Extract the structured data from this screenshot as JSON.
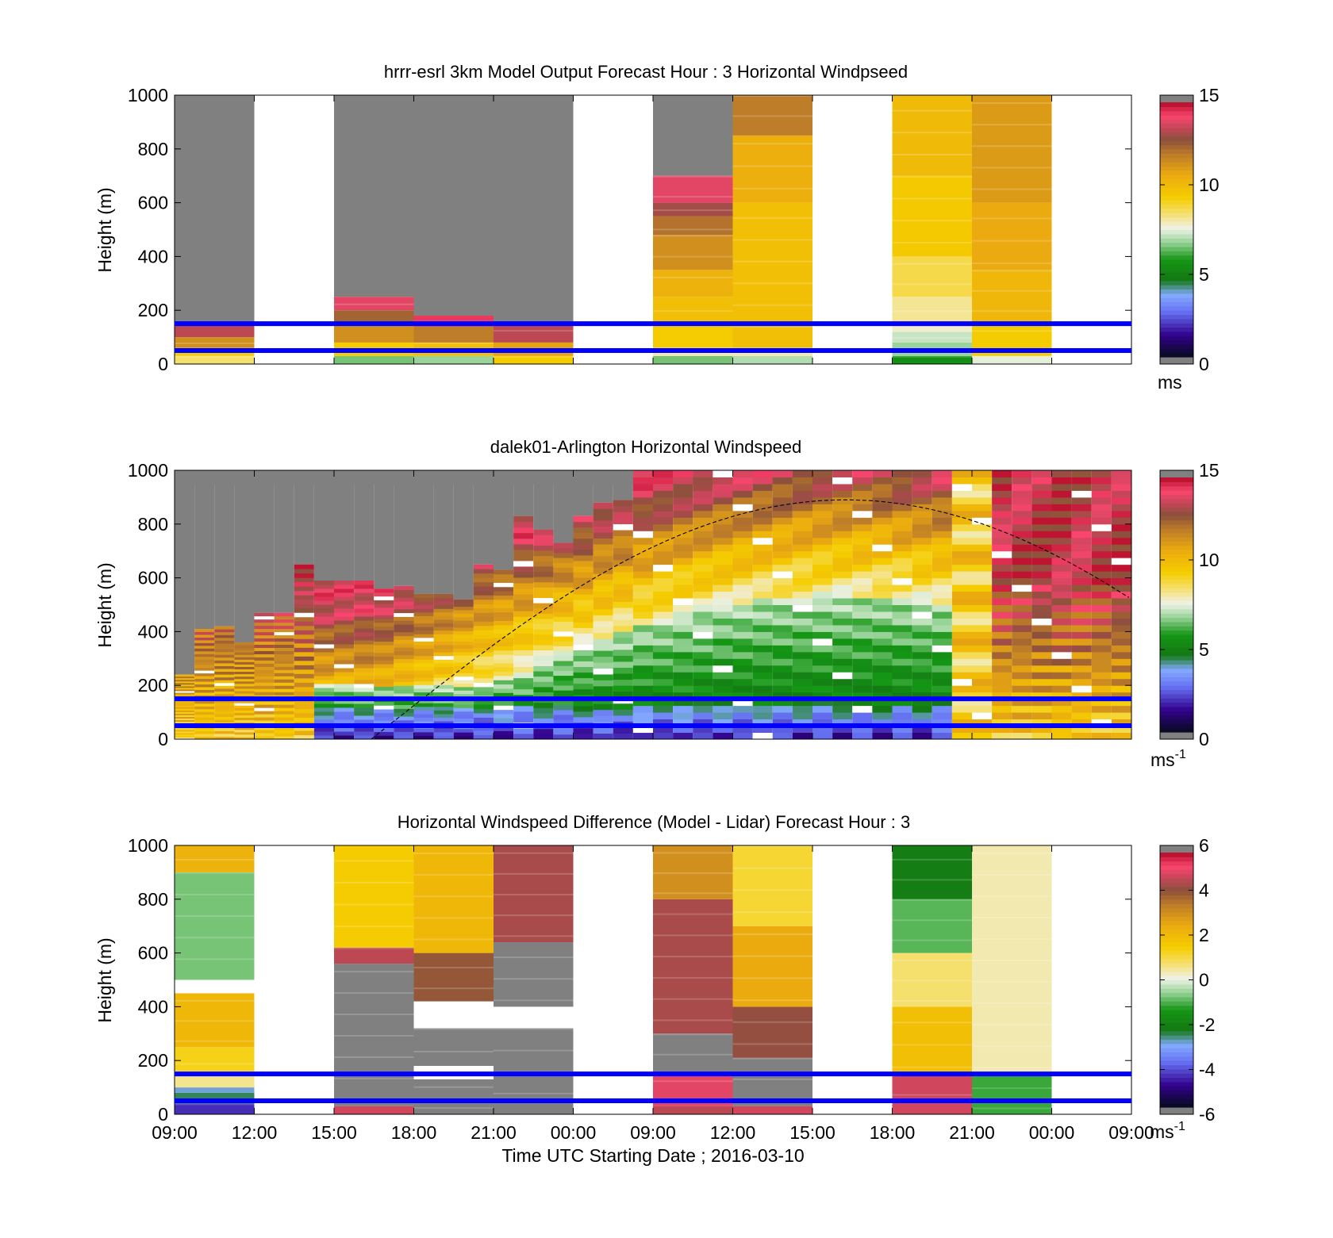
{
  "chart_data": [
    {
      "type": "heatmap",
      "title": "hrrr-esrl 3km Model Output   Forecast Hour : 3 Horizontal Windpseed",
      "ylabel": "Height (m)",
      "yticks": [
        "0",
        "200",
        "400",
        "600",
        "800",
        "1000"
      ],
      "ylim": [
        0,
        1000
      ],
      "xlim_hours": [
        0,
        72
      ],
      "colorbar": {
        "ticks": [
          "0",
          "5",
          "10",
          "15"
        ],
        "unit": "ms",
        "range": [
          0,
          15
        ]
      },
      "reference_lines_m": [
        50,
        150
      ],
      "columns": [
        {
          "start_hour": 0,
          "top_m": 150,
          "segments": [
            [
              0,
              30,
              8.5
            ],
            [
              30,
              60,
              9.5
            ],
            [
              60,
              100,
              11.5
            ],
            [
              100,
              150,
              13.5
            ]
          ]
        },
        {
          "start_hour": 12,
          "top_m": 250,
          "segments": [
            [
              0,
              30,
              6.5
            ],
            [
              30,
              80,
              9.5
            ],
            [
              80,
              150,
              11.5
            ],
            [
              150,
              200,
              12.5
            ],
            [
              200,
              250,
              14
            ]
          ]
        },
        {
          "start_hour": 18,
          "top_m": 180,
          "segments": [
            [
              0,
              30,
              6.8
            ],
            [
              30,
              80,
              10
            ],
            [
              80,
              140,
              12
            ],
            [
              140,
              180,
              14.5
            ]
          ]
        },
        {
          "start_hour": 24,
          "top_m": 150,
          "segments": [
            [
              0,
              30,
              9.5
            ],
            [
              30,
              80,
              11
            ],
            [
              80,
              150,
              13.5
            ]
          ]
        },
        {
          "start_hour": 36,
          "top_m": 700,
          "segments": [
            [
              0,
              30,
              6.5
            ],
            [
              30,
              60,
              8
            ],
            [
              60,
              150,
              9.5
            ],
            [
              150,
              250,
              10
            ],
            [
              250,
              350,
              10.5
            ],
            [
              350,
              480,
              11.5
            ],
            [
              480,
              550,
              12.2
            ],
            [
              550,
              600,
              13.2
            ],
            [
              600,
              700,
              14
            ]
          ]
        },
        {
          "start_hour": 42,
          "top_m": 1000,
          "segments": [
            [
              0,
              30,
              7
            ],
            [
              30,
              60,
              8
            ],
            [
              60,
              600,
              10
            ],
            [
              600,
              850,
              10.6
            ],
            [
              850,
              1000,
              12
            ]
          ]
        },
        {
          "start_hour": 54,
          "top_m": 1000,
          "segments": [
            [
              0,
              30,
              5.5
            ],
            [
              30,
              80,
              6.8
            ],
            [
              80,
              120,
              7.2
            ],
            [
              120,
              150,
              7.8
            ],
            [
              150,
              250,
              8.2
            ],
            [
              250,
              400,
              8.8
            ],
            [
              400,
              700,
              9.6
            ],
            [
              700,
              1000,
              10.2
            ]
          ]
        },
        {
          "start_hour": 60,
          "top_m": 1000,
          "segments": [
            [
              0,
              30,
              7.5
            ],
            [
              30,
              150,
              9.5
            ],
            [
              150,
              350,
              10.3
            ],
            [
              350,
              600,
              10.8
            ],
            [
              600,
              1000,
              11.2
            ]
          ]
        }
      ]
    },
    {
      "type": "heatmap",
      "title": "dalek01-Arlington  Horizontal Windspeed",
      "ylabel": "Height (m)",
      "yticks": [
        "0",
        "200",
        "400",
        "600",
        "800",
        "1000"
      ],
      "ylim": [
        0,
        1000
      ],
      "xlim_hours": [
        0,
        72
      ],
      "colorbar": {
        "ticks": [
          "0",
          "5",
          "10",
          "15"
        ],
        "unit": "ms",
        "unit_sup": "-1",
        "range": [
          0,
          15
        ]
      },
      "reference_lines_m": [
        50,
        150
      ],
      "boundary_layer_curve": {
        "peak_hour": 50.5,
        "peak_m": 890,
        "zero_hours": [
          14.8,
          86.2
        ]
      },
      "profile_tops_m": [
        240,
        410,
        420,
        360,
        470,
        470,
        650,
        590,
        590,
        590,
        560,
        570,
        540,
        540,
        520,
        650,
        630,
        830,
        780,
        730,
        830,
        880,
        890,
        1000,
        1000,
        1000,
        1000,
        1000,
        1000,
        1000,
        1000,
        1000,
        1000,
        1000,
        1000,
        1000,
        1000,
        1000,
        1000,
        1000,
        1000,
        1000,
        1000,
        1000,
        1000,
        1000,
        1000,
        1000
      ]
    },
    {
      "type": "heatmap",
      "title": "Horizontal Windspeed Difference (Model - Lidar) Forecast Hour : 3",
      "ylabel": "Height (m)",
      "xlabel": "Time UTC  Starting Date ; 2016-03-10",
      "yticks": [
        "0",
        "200",
        "400",
        "600",
        "800",
        "1000"
      ],
      "xticks": [
        "09:00",
        "12:00",
        "15:00",
        "18:00",
        "21:00",
        "00:00",
        "09:00",
        "12:00",
        "15:00",
        "18:00",
        "21:00",
        "00:00",
        "09:00"
      ],
      "ylim": [
        0,
        1000
      ],
      "xlim_hours": [
        0,
        72
      ],
      "colorbar": {
        "ticks": [
          "-6",
          "-4",
          "-2",
          "0",
          "2",
          "4",
          "6"
        ],
        "unit": "ms",
        "unit_sup": "-1",
        "range": [
          -6,
          6
        ]
      },
      "reference_lines_m": [
        50,
        150
      ],
      "columns": [
        {
          "start_hour": 0,
          "segments": [
            [
              0,
              40,
              -4.6
            ],
            [
              40,
              80,
              -2.6
            ],
            [
              80,
              100,
              -3
            ],
            [
              100,
              160,
              0.6
            ],
            [
              160,
              250,
              1.4
            ],
            [
              250,
              450,
              2.2
            ],
            [
              500,
              900,
              -0.8
            ],
            [
              900,
              1000,
              2.4
            ]
          ]
        },
        {
          "start_hour": 12,
          "segments": [
            [
              0,
              30,
              5
            ],
            [
              30,
              560,
              "nodata"
            ],
            [
              560,
              620,
              4.8
            ],
            [
              620,
              1000,
              1.6
            ]
          ]
        },
        {
          "start_hour": 18,
          "segments": [
            [
              0,
              130,
              "nodata"
            ],
            [
              180,
              320,
              "nodata"
            ],
            [
              420,
              600,
              4.2
            ],
            [
              600,
              1000,
              2.2
            ]
          ]
        },
        {
          "start_hour": 24,
          "segments": [
            [
              0,
              320,
              "nodata"
            ],
            [
              400,
              640,
              "nodata"
            ],
            [
              640,
              1000,
              4.6
            ]
          ]
        },
        {
          "start_hour": 36,
          "segments": [
            [
              0,
              30,
              4.8
            ],
            [
              30,
              150,
              5.2
            ],
            [
              150,
              300,
              "nodata"
            ],
            [
              300,
              800,
              4.6
            ],
            [
              800,
              1000,
              3.2
            ]
          ]
        },
        {
          "start_hour": 42,
          "segments": [
            [
              0,
              30,
              5
            ],
            [
              30,
              210,
              "nodata"
            ],
            [
              210,
              400,
              4.4
            ],
            [
              400,
              700,
              2.6
            ],
            [
              700,
              1000,
              1.2
            ]
          ]
        },
        {
          "start_hour": 54,
          "segments": [
            [
              0,
              150,
              5
            ],
            [
              150,
              400,
              2
            ],
            [
              400,
              600,
              0.8
            ],
            [
              600,
              800,
              -1
            ],
            [
              800,
              1000,
              -2.2
            ]
          ]
        },
        {
          "start_hour": 60,
          "segments": [
            [
              0,
              150,
              -1.2
            ],
            [
              150,
              1000,
              0.4
            ]
          ]
        }
      ]
    }
  ]
}
